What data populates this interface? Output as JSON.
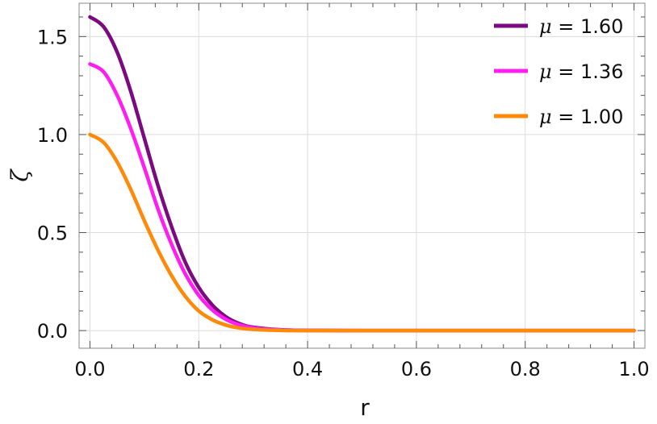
{
  "chart_data": {
    "type": "line",
    "title": "",
    "xlabel": "r",
    "ylabel": "ζ",
    "xlim": [
      -0.02,
      1.02
    ],
    "ylim": [
      -0.09,
      1.67
    ],
    "x_ticks": [
      0.0,
      0.2,
      0.4,
      0.6,
      0.8,
      1.0
    ],
    "x_tick_labels": [
      "0.0",
      "0.2",
      "0.4",
      "0.6",
      "0.8",
      "1.0"
    ],
    "y_ticks": [
      0.0,
      0.5,
      1.0,
      1.5
    ],
    "y_tick_labels": [
      "0.0",
      "0.5",
      "1.0",
      "1.5"
    ],
    "grid": true,
    "legend_position": "top-right",
    "series": [
      {
        "name": "μ = 1.60",
        "legend_symbol": "μ",
        "legend_value": " = 1.60",
        "color": "#7b0a80",
        "x": [
          0.0,
          0.025,
          0.05,
          0.075,
          0.1,
          0.125,
          0.15,
          0.175,
          0.2,
          0.225,
          0.25,
          0.275,
          0.3,
          0.35,
          0.4,
          0.5,
          0.6,
          0.8,
          1.0
        ],
        "y": [
          1.6,
          1.55,
          1.42,
          1.22,
          0.98,
          0.74,
          0.53,
          0.35,
          0.22,
          0.13,
          0.07,
          0.035,
          0.017,
          0.004,
          0.001,
          0.0,
          0.0,
          0.0,
          0.0
        ]
      },
      {
        "name": "μ = 1.36",
        "legend_symbol": "μ",
        "legend_value": " = 1.36",
        "color": "#ff1ef0",
        "x": [
          0.0,
          0.025,
          0.05,
          0.075,
          0.1,
          0.125,
          0.15,
          0.175,
          0.2,
          0.225,
          0.25,
          0.275,
          0.3,
          0.35,
          0.4,
          0.5,
          0.6,
          0.8,
          1.0
        ],
        "y": [
          1.36,
          1.32,
          1.2,
          1.03,
          0.83,
          0.62,
          0.44,
          0.29,
          0.18,
          0.105,
          0.057,
          0.029,
          0.014,
          0.003,
          0.001,
          0.0,
          0.0,
          0.0,
          0.0
        ]
      },
      {
        "name": "μ = 1.00",
        "legend_symbol": "μ",
        "legend_value": " = 1.00",
        "color": "#ff8a0a",
        "x": [
          0.0,
          0.025,
          0.05,
          0.075,
          0.1,
          0.125,
          0.15,
          0.175,
          0.2,
          0.225,
          0.25,
          0.275,
          0.3,
          0.35,
          0.4,
          0.5,
          0.6,
          0.8,
          1.0
        ],
        "y": [
          1.0,
          0.96,
          0.86,
          0.72,
          0.56,
          0.41,
          0.28,
          0.175,
          0.1,
          0.055,
          0.028,
          0.013,
          0.006,
          0.001,
          0.0,
          0.0,
          0.0,
          0.0,
          0.0
        ]
      }
    ]
  }
}
